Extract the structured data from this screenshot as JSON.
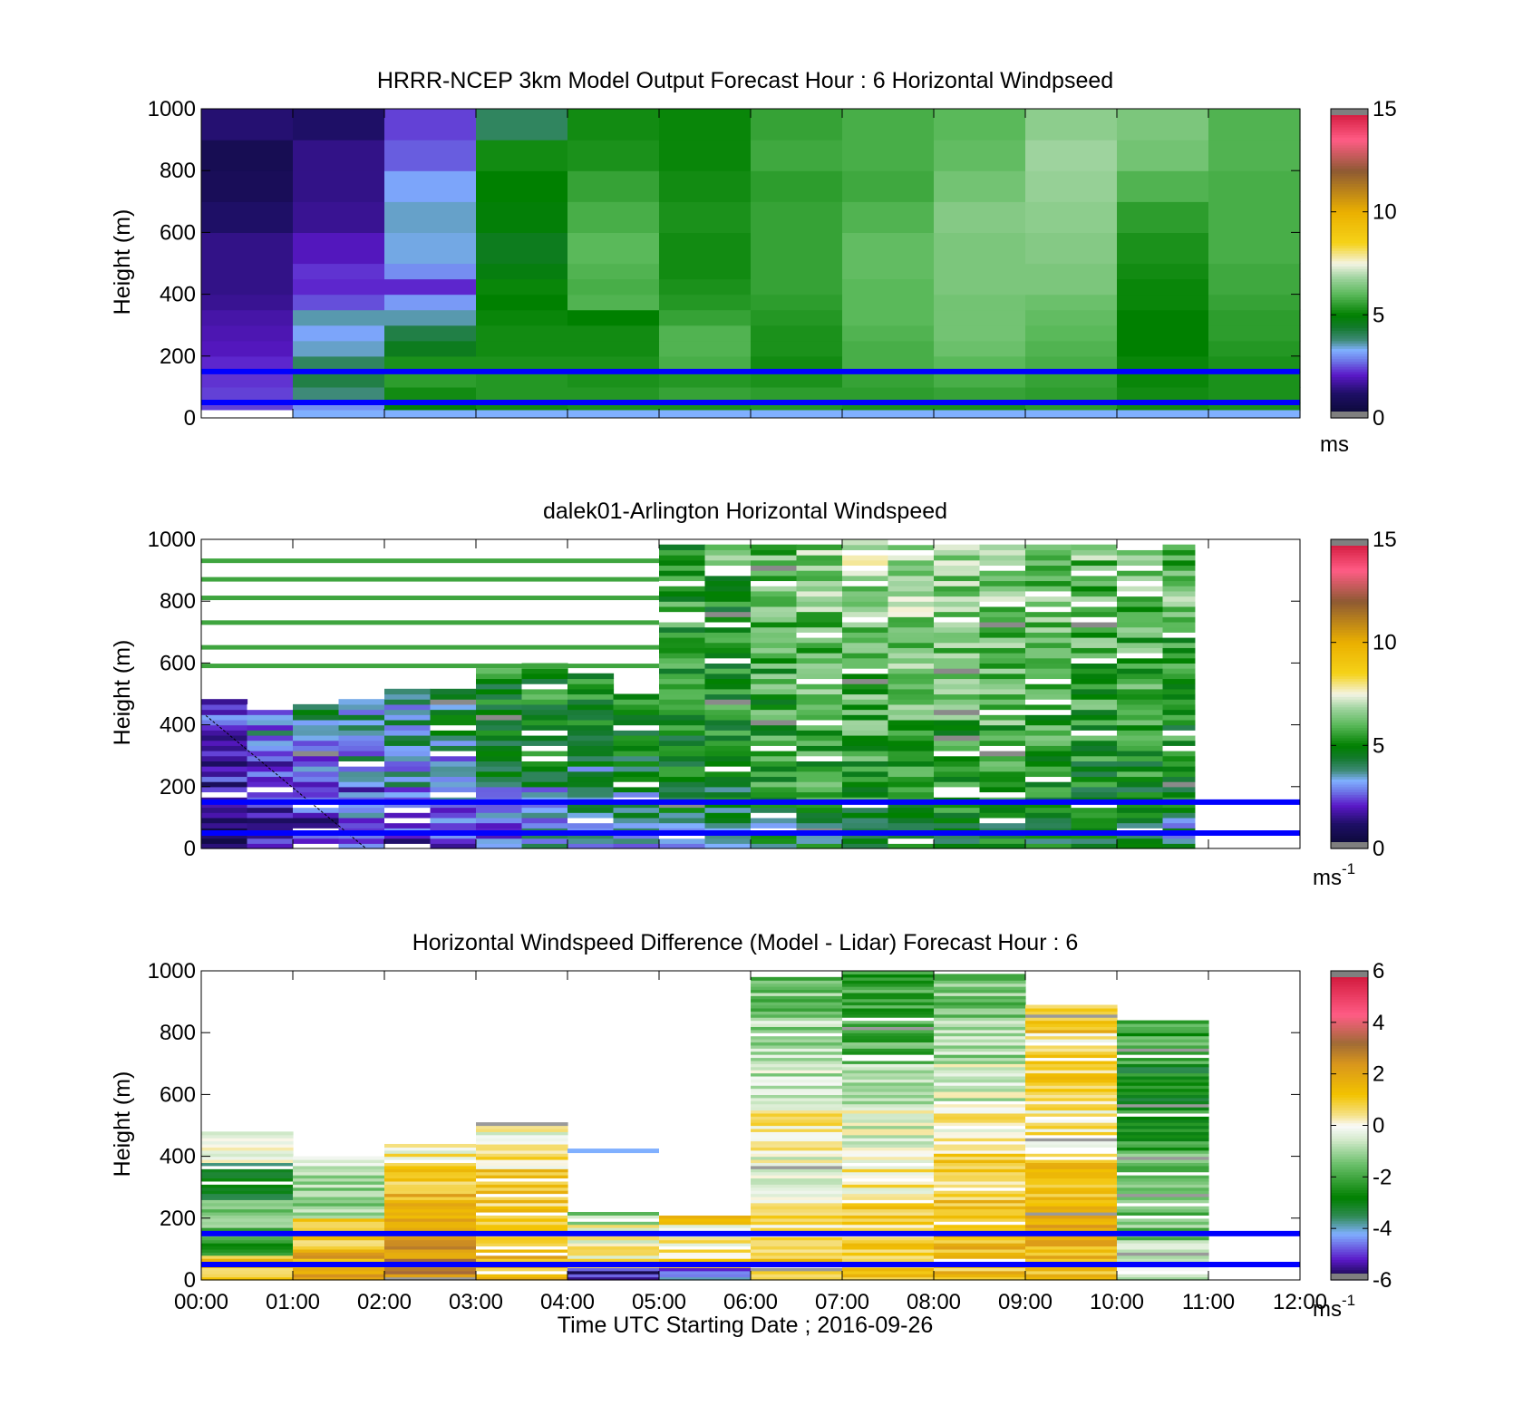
{
  "colors": {
    "ref_line": "#0000ff",
    "axis": "#000000",
    "background": "#ffffff"
  },
  "chart_data": [
    {
      "type": "heatmap",
      "title": "HRRR-NCEP 3km Model Output   Forecast Hour : 6 Horizontal Windpseed",
      "ylabel": "Height (m)",
      "xlabel": "",
      "xlim": [
        0,
        12
      ],
      "ylim": [
        0,
        1000
      ],
      "yticks": [
        "0",
        "200",
        "400",
        "600",
        "800",
        "1000"
      ],
      "xticks": [],
      "colorbar": {
        "min": 0,
        "max": 15,
        "ticks": [
          "0",
          "5",
          "10",
          "15"
        ],
        "unit": "ms",
        "colormap": "windspeed"
      },
      "grid": false,
      "ref_lines_m": [
        50,
        150
      ],
      "row_heights_m": [
        50,
        100,
        150,
        200,
        250,
        300,
        350,
        400,
        450,
        500,
        600,
        700,
        800,
        900,
        1000
      ],
      "columns": [
        {
          "t0": 0,
          "t1": 1,
          "z": [
            2.4,
            2.4,
            2.3,
            2.2,
            2.0,
            1.9,
            1.8,
            1.6,
            1.5,
            1.5,
            1.5,
            1.2,
            0.9,
            0.8,
            1.3
          ]
        },
        {
          "t0": 1,
          "t1": 2,
          "z": [
            3.0,
            3.8,
            4.2,
            4.0,
            3.5,
            3.2,
            3.6,
            2.5,
            2.2,
            2.3,
            2.0,
            1.6,
            1.5,
            1.5,
            1.2
          ]
        },
        {
          "t0": 2,
          "t1": 3,
          "z": [
            4.9,
            5.2,
            5.5,
            5.3,
            4.6,
            4.2,
            3.6,
            3.1,
            2.2,
            3.0,
            3.4,
            3.5,
            3.2,
            2.6,
            2.4
          ]
        },
        {
          "t0": 3,
          "t1": 4,
          "z": [
            5.2,
            5.4,
            5.4,
            5.3,
            5.2,
            5.2,
            5.1,
            5.0,
            5.1,
            4.8,
            4.6,
            4.9,
            5.0,
            5.2,
            4.0
          ]
        },
        {
          "t0": 4,
          "t1": 5,
          "z": [
            5.3,
            5.4,
            5.3,
            5.3,
            5.2,
            5.2,
            5.0,
            5.9,
            5.8,
            5.9,
            6.0,
            5.8,
            5.6,
            5.3,
            5.2
          ]
        },
        {
          "t0": 5,
          "t1": 6,
          "z": [
            5.3,
            5.6,
            5.4,
            5.8,
            5.9,
            5.9,
            5.6,
            5.4,
            5.3,
            5.2,
            5.2,
            5.3,
            5.2,
            5.1,
            5.1
          ]
        },
        {
          "t0": 6,
          "t1": 7,
          "z": [
            5.4,
            5.5,
            5.3,
            5.2,
            5.3,
            5.3,
            5.4,
            5.5,
            5.6,
            5.6,
            5.6,
            5.6,
            5.5,
            5.7,
            5.6
          ]
        },
        {
          "t0": 7,
          "t1": 8,
          "z": [
            5.3,
            5.5,
            5.6,
            5.8,
            5.8,
            5.9,
            6.0,
            6.0,
            6.0,
            6.1,
            6.1,
            5.9,
            5.7,
            5.8,
            5.8
          ]
        },
        {
          "t0": 8,
          "t1": 9,
          "z": [
            5.3,
            5.6,
            5.8,
            6.0,
            6.2,
            6.3,
            6.3,
            6.3,
            6.4,
            6.4,
            6.4,
            6.5,
            6.3,
            6.1,
            6.0
          ]
        },
        {
          "t0": 9,
          "t1": 10,
          "z": [
            5.5,
            5.5,
            5.6,
            5.8,
            5.9,
            6.0,
            6.1,
            6.2,
            6.4,
            6.4,
            6.5,
            6.6,
            6.7,
            6.8,
            6.6
          ]
        },
        {
          "t0": 10,
          "t1": 11,
          "z": [
            5.2,
            5.2,
            5.1,
            5.1,
            5.0,
            5.0,
            5.0,
            5.1,
            5.1,
            5.2,
            5.3,
            5.5,
            5.9,
            6.3,
            6.4
          ]
        },
        {
          "t0": 11,
          "t1": 12,
          "z": [
            5.3,
            5.3,
            5.3,
            5.3,
            5.4,
            5.5,
            5.5,
            5.6,
            5.7,
            5.7,
            5.8,
            5.8,
            5.8,
            5.9,
            5.9
          ]
        }
      ]
    },
    {
      "type": "heatmap",
      "title": "dalek01-Arlington  Horizontal Windspeed",
      "ylabel": "Height (m)",
      "xlabel": "",
      "xlim": [
        0,
        12
      ],
      "ylim": [
        0,
        1000
      ],
      "yticks": [
        "0",
        "200",
        "400",
        "600",
        "800",
        "1000"
      ],
      "xticks": [],
      "colorbar": {
        "min": 0,
        "max": 15,
        "ticks": [
          "0",
          "5",
          "10",
          "15"
        ],
        "unit": "ms",
        "unit_sup": "-1",
        "colormap": "windspeed"
      },
      "grid": false,
      "ref_lines_m": [
        50,
        150
      ],
      "data_xmax": 10.85,
      "profiles": [
        {
          "t0": 0.0,
          "top": 480,
          "base": [
            1.4,
            1.5,
            1.8,
            2.3,
            2.6,
            2.2,
            1.8,
            1.5,
            1.4,
            1.2
          ]
        },
        {
          "t0": 0.5,
          "top": 460,
          "base": [
            1.6,
            1.8,
            2.6,
            3.2,
            3.0,
            2.4,
            2.2,
            1.9,
            1.7,
            1.5
          ]
        },
        {
          "t0": 1.0,
          "top": 470,
          "base": [
            2.0,
            2.5,
            3.0,
            3.5,
            4.0,
            3.6,
            3.2,
            2.6,
            2.2,
            2.0
          ]
        },
        {
          "t0": 1.5,
          "top": 480,
          "base": [
            2.2,
            2.6,
            3.3,
            3.4,
            3.6,
            3.8,
            3.6,
            3.2,
            3.0,
            2.8
          ]
        },
        {
          "t0": 2.0,
          "top": 510,
          "base": [
            2.2,
            2.8,
            3.4,
            3.6,
            3.5,
            3.6,
            3.8,
            3.6,
            3.4,
            3.0
          ]
        },
        {
          "t0": 2.5,
          "top": 520,
          "base": [
            2.5,
            3.0,
            3.5,
            4.0,
            4.4,
            4.8,
            5.0,
            5.2,
            5.0,
            4.8
          ]
        },
        {
          "t0": 3.0,
          "top": 580,
          "base": [
            3.0,
            3.5,
            4.2,
            4.8,
            5.2,
            5.1,
            5.0,
            5.1,
            5.0,
            5.0
          ]
        },
        {
          "t0": 3.5,
          "top": 600,
          "base": [
            3.2,
            3.6,
            4.6,
            5.1,
            5.2,
            5.0,
            5.1,
            5.2,
            5.1,
            5.3
          ]
        },
        {
          "t0": 4.0,
          "top": 560,
          "base": [
            3.3,
            3.8,
            4.0,
            4.9,
            5.2,
            5.0,
            5.2,
            5.3,
            5.4,
            5.5
          ]
        },
        {
          "t0": 4.5,
          "top": 500,
          "base": [
            3.5,
            3.8,
            4.6,
            4.9,
            5.3,
            5.4,
            5.4,
            5.5,
            5.6,
            5.8
          ]
        },
        {
          "t0": 5.0,
          "top": 990,
          "base": [
            3.6,
            4.2,
            5.0,
            5.1,
            5.2,
            5.3,
            5.3,
            5.4,
            5.4,
            5.5
          ]
        },
        {
          "t0": 5.5,
          "top": 990,
          "base": [
            3.8,
            4.5,
            5.2,
            5.3,
            5.2,
            5.1,
            5.2,
            5.3,
            5.6,
            5.9
          ]
        },
        {
          "t0": 6.0,
          "top": 990,
          "base": [
            4.2,
            4.8,
            5.4,
            5.5,
            5.6,
            5.7,
            5.8,
            5.9,
            6.0,
            6.2
          ]
        },
        {
          "t0": 6.5,
          "top": 990,
          "base": [
            4.4,
            5.0,
            5.5,
            5.6,
            5.8,
            5.9,
            6.0,
            6.2,
            6.4,
            6.6
          ]
        },
        {
          "t0": 7.0,
          "top": 995,
          "base": [
            4.6,
            5.1,
            5.5,
            5.7,
            5.9,
            6.0,
            6.2,
            6.4,
            6.6,
            6.8
          ]
        },
        {
          "t0": 7.5,
          "top": 995,
          "base": [
            4.6,
            5.2,
            5.5,
            5.8,
            5.9,
            6.1,
            6.3,
            6.5,
            6.7,
            6.9
          ]
        },
        {
          "t0": 8.0,
          "top": 990,
          "base": [
            4.8,
            5.2,
            5.4,
            5.6,
            5.8,
            6.0,
            6.2,
            6.4,
            6.6,
            6.8
          ]
        },
        {
          "t0": 8.5,
          "top": 990,
          "base": [
            4.8,
            5.3,
            5.5,
            5.7,
            5.9,
            6.1,
            6.1,
            6.3,
            6.4,
            6.5
          ]
        },
        {
          "t0": 9.0,
          "top": 980,
          "base": [
            4.8,
            5.2,
            5.3,
            5.5,
            5.7,
            5.9,
            6.0,
            6.2,
            6.3,
            6.4
          ]
        },
        {
          "t0": 9.5,
          "top": 980,
          "base": [
            4.6,
            5.0,
            5.2,
            5.3,
            5.5,
            5.7,
            5.8,
            6.0,
            6.1,
            6.2
          ]
        },
        {
          "t0": 10.0,
          "top": 980,
          "base": [
            4.4,
            4.9,
            5.1,
            5.3,
            5.4,
            5.6,
            5.8,
            6.0,
            6.2,
            6.2
          ]
        },
        {
          "t0": 10.5,
          "top": 980,
          "base": [
            3.8,
            4.8,
            5.1,
            5.2,
            5.4,
            5.5,
            5.7,
            6.0,
            6.1,
            6.0
          ]
        }
      ]
    },
    {
      "type": "heatmap",
      "title": "Horizontal Windspeed Difference (Model - Lidar) Forecast Hour : 6",
      "ylabel": "Height (m)",
      "xlabel": "Time UTC  Starting Date ; 2016-09-26",
      "xlim": [
        0,
        12
      ],
      "ylim": [
        0,
        1000
      ],
      "yticks": [
        "0",
        "200",
        "400",
        "600",
        "800",
        "1000"
      ],
      "xticks": [
        "00:00",
        "01:00",
        "02:00",
        "03:00",
        "04:00",
        "05:00",
        "06:00",
        "07:00",
        "08:00",
        "09:00",
        "10:00",
        "11:00",
        "12:00"
      ],
      "colorbar": {
        "min": -6,
        "max": 6,
        "ticks": [
          "-6",
          "-4",
          "-2",
          "0",
          "2",
          "4",
          "6"
        ],
        "unit": "ms",
        "unit_sup": "-1",
        "colormap": "difference"
      },
      "grid": false,
      "ref_lines_m": [
        50,
        150
      ],
      "columns": [
        {
          "t0": 0,
          "t1": 1,
          "top": 480,
          "bands": [
            [
              0,
              80,
              1.0
            ],
            [
              80,
              160,
              -2.0
            ],
            [
              160,
              260,
              -1.5
            ],
            [
              260,
              380,
              -3.0
            ],
            [
              380,
              480,
              -0.5
            ]
          ]
        },
        {
          "t0": 1,
          "t1": 2,
          "top": 400,
          "bands": [
            [
              0,
              100,
              1.8
            ],
            [
              100,
              200,
              1.2
            ],
            [
              200,
              300,
              -1.2
            ],
            [
              300,
              400,
              -0.8
            ]
          ]
        },
        {
          "t0": 2,
          "t1": 3,
          "top": 440,
          "bands": [
            [
              0,
              100,
              2.5
            ],
            [
              100,
              200,
              2.2
            ],
            [
              200,
              300,
              1.5
            ],
            [
              300,
              380,
              0.8
            ],
            [
              380,
              440,
              0.2
            ]
          ]
        },
        {
          "t0": 3,
          "t1": 4,
          "top": 510,
          "bands": [
            [
              0,
              120,
              1.5
            ],
            [
              120,
              220,
              1.2
            ],
            [
              220,
              360,
              1.0
            ],
            [
              360,
              440,
              0.4
            ],
            [
              440,
              510,
              -0.2
            ]
          ]
        },
        {
          "t0": 4,
          "t1": 5,
          "top": 220,
          "bands": [
            [
              0,
              40,
              -5.2
            ],
            [
              40,
              90,
              0.3
            ],
            [
              90,
              180,
              0.1
            ],
            [
              180,
              220,
              -1.2
            ]
          ]
        },
        {
          "t0": 5,
          "t1": 6,
          "top": 220,
          "bands": [
            [
              0,
              40,
              -4.5
            ],
            [
              40,
              100,
              0.5
            ],
            [
              100,
              180,
              0.1
            ],
            [
              180,
              220,
              1.2
            ]
          ]
        },
        {
          "t0": 6,
          "t1": 7,
          "top": 980,
          "bands": [
            [
              0,
              120,
              0.8
            ],
            [
              120,
              260,
              0.4
            ],
            [
              260,
              420,
              -0.3
            ],
            [
              420,
              560,
              0.2
            ],
            [
              560,
              700,
              -0.6
            ],
            [
              700,
              840,
              -1.0
            ],
            [
              840,
              980,
              -1.4
            ]
          ]
        },
        {
          "t0": 7,
          "t1": 8,
          "top": 1000,
          "bands": [
            [
              0,
              120,
              1.0
            ],
            [
              120,
              260,
              0.7
            ],
            [
              260,
              420,
              0.3
            ],
            [
              420,
              560,
              -0.4
            ],
            [
              560,
              700,
              -1.0
            ],
            [
              700,
              840,
              -1.8
            ],
            [
              840,
              1000,
              -2.2
            ]
          ]
        },
        {
          "t0": 8,
          "t1": 9,
          "top": 990,
          "bands": [
            [
              0,
              120,
              1.3
            ],
            [
              120,
              260,
              1.2
            ],
            [
              260,
              420,
              0.8
            ],
            [
              420,
              560,
              0.1
            ],
            [
              560,
              700,
              -0.5
            ],
            [
              700,
              840,
              -1.0
            ],
            [
              840,
              990,
              -1.4
            ]
          ]
        },
        {
          "t0": 9,
          "t1": 10,
          "top": 890,
          "bands": [
            [
              0,
              120,
              1.5
            ],
            [
              120,
              260,
              1.6
            ],
            [
              260,
              420,
              1.2
            ],
            [
              420,
              560,
              0.3
            ],
            [
              560,
              700,
              0.8
            ],
            [
              700,
              800,
              0.6
            ],
            [
              800,
              890,
              1.2
            ]
          ]
        },
        {
          "t0": 10,
          "t1": 11,
          "top": 840,
          "bands": [
            [
              0,
              120,
              -0.6
            ],
            [
              120,
              260,
              -1.4
            ],
            [
              260,
              420,
              -1.8
            ],
            [
              420,
              560,
              -2.4
            ],
            [
              560,
              700,
              -2.8
            ],
            [
              700,
              840,
              -2.0
            ]
          ]
        }
      ]
    }
  ]
}
